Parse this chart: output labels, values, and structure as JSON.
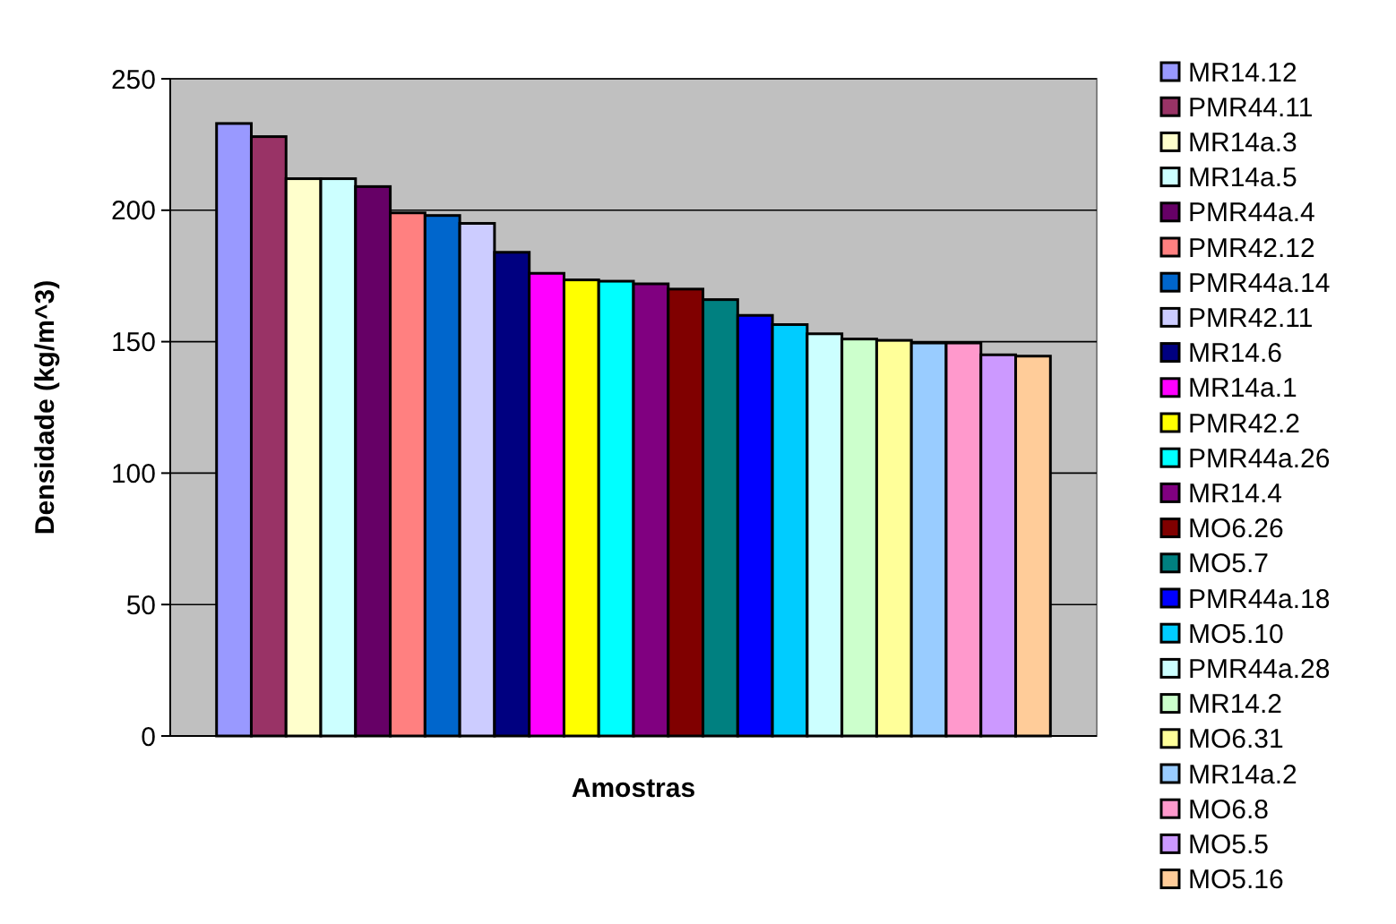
{
  "chart_data": {
    "type": "bar",
    "xlabel": "Amostras",
    "ylabel": "Densidade (kg/m^3)",
    "categories": [
      null
    ],
    "ylim": [
      0,
      250
    ],
    "yticks": [
      0,
      50,
      100,
      150,
      200,
      250
    ],
    "grid": "y",
    "legend": "right",
    "series": [
      {
        "name": "MR14.12",
        "color": "#9999ff",
        "values": [
          233
        ]
      },
      {
        "name": "PMR44.11",
        "color": "#993366",
        "values": [
          228
        ]
      },
      {
        "name": "MR14a.3",
        "color": "#ffffcc",
        "values": [
          212
        ]
      },
      {
        "name": "MR14a.5",
        "color": "#ccffff",
        "values": [
          212
        ]
      },
      {
        "name": "PMR44a.4",
        "color": "#660066",
        "values": [
          209
        ]
      },
      {
        "name": "PMR42.12",
        "color": "#ff8080",
        "values": [
          199
        ]
      },
      {
        "name": "PMR44a.14",
        "color": "#0066cc",
        "values": [
          198
        ]
      },
      {
        "name": "PMR42.11",
        "color": "#ccccff",
        "values": [
          195
        ]
      },
      {
        "name": "MR14.6",
        "color": "#000080",
        "values": [
          184
        ]
      },
      {
        "name": "MR14a.1",
        "color": "#ff00ff",
        "values": [
          176
        ]
      },
      {
        "name": "PMR42.2",
        "color": "#ffff00",
        "values": [
          173.5
        ]
      },
      {
        "name": "PMR44a.26",
        "color": "#00ffff",
        "values": [
          173
        ]
      },
      {
        "name": "MR14.4",
        "color": "#800080",
        "values": [
          172
        ]
      },
      {
        "name": "MO6.26",
        "color": "#800000",
        "values": [
          170
        ]
      },
      {
        "name": "MO5.7",
        "color": "#008080",
        "values": [
          166
        ]
      },
      {
        "name": "PMR44a.18",
        "color": "#0000ff",
        "values": [
          160
        ]
      },
      {
        "name": "MO5.10",
        "color": "#00ccff",
        "values": [
          156.5
        ]
      },
      {
        "name": "PMR44a.28",
        "color": "#ccffff",
        "values": [
          153
        ]
      },
      {
        "name": "MR14.2",
        "color": "#ccffcc",
        "values": [
          151
        ]
      },
      {
        "name": "MO6.31",
        "color": "#ffff99",
        "values": [
          150.5
        ]
      },
      {
        "name": "MR14a.2",
        "color": "#99ccff",
        "values": [
          149.5
        ]
      },
      {
        "name": "MO6.8",
        "color": "#ff99cc",
        "values": [
          149.5
        ]
      },
      {
        "name": "MO5.5",
        "color": "#cc99ff",
        "values": [
          145
        ]
      },
      {
        "name": "MO5.16",
        "color": "#ffcc99",
        "values": [
          144.5
        ]
      }
    ]
  }
}
